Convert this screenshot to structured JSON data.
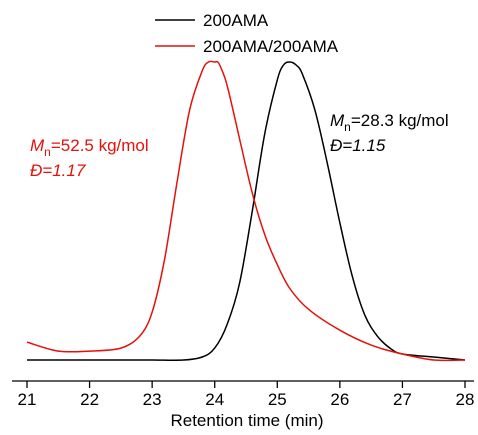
{
  "chart_data": {
    "type": "line",
    "title": "",
    "xlabel": "Retention time (min)",
    "ylabel": "",
    "xlim": [
      21,
      28
    ],
    "ylim": [
      0,
      1.05
    ],
    "x_ticks": [
      "21",
      "22",
      "23",
      "24",
      "25",
      "26",
      "27",
      "28"
    ],
    "grid": false,
    "legend_position": "top-center",
    "series": [
      {
        "name": "200AMA",
        "color": "#000000",
        "x": [
          21.0,
          21.5,
          22.0,
          22.5,
          23.0,
          23.5,
          23.8,
          24.0,
          24.2,
          24.4,
          24.6,
          24.8,
          25.0,
          25.1,
          25.2,
          25.3,
          25.4,
          25.6,
          25.8,
          26.0,
          26.2,
          26.4,
          26.6,
          26.8,
          27.0,
          27.5,
          28.0
        ],
        "y": [
          0.0,
          0.0,
          0.0,
          0.0,
          0.0,
          0.0,
          0.01,
          0.04,
          0.12,
          0.26,
          0.5,
          0.76,
          0.94,
          0.99,
          1.0,
          0.99,
          0.96,
          0.84,
          0.66,
          0.46,
          0.28,
          0.15,
          0.08,
          0.04,
          0.02,
          0.01,
          0.0
        ]
      },
      {
        "name": "200AMA/200AMA",
        "color": "#e3120b",
        "x": [
          21.0,
          21.5,
          22.0,
          22.5,
          22.8,
          23.0,
          23.2,
          23.4,
          23.6,
          23.8,
          23.9,
          24.0,
          24.05,
          24.1,
          24.2,
          24.4,
          24.6,
          24.8,
          25.0,
          25.2,
          25.5,
          26.0,
          26.5,
          27.0,
          27.5,
          28.0
        ],
        "y": [
          0.06,
          0.03,
          0.03,
          0.04,
          0.08,
          0.16,
          0.34,
          0.6,
          0.84,
          0.97,
          1.0,
          1.0,
          1.0,
          0.98,
          0.92,
          0.74,
          0.56,
          0.42,
          0.32,
          0.24,
          0.17,
          0.1,
          0.05,
          0.02,
          0.0,
          0.0
        ]
      }
    ],
    "annotations": [
      {
        "series": "200AMA/200AMA",
        "symbol": "M",
        "subscript": "n",
        "rest": "=52.5 kg/mol",
        "dispersity": "Đ=1.17",
        "color": "#e3120b"
      },
      {
        "series": "200AMA",
        "symbol": "M",
        "subscript": "n",
        "rest": "=28.3 kg/mol",
        "dispersity": "Đ=1.15",
        "color": "#000000"
      }
    ]
  }
}
